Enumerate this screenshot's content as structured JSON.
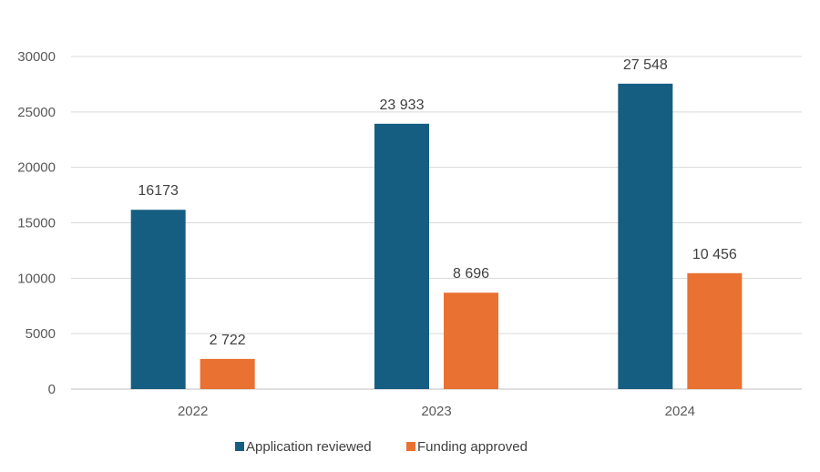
{
  "chart_data": {
    "type": "bar",
    "categories": [
      "2022",
      "2023",
      "2024"
    ],
    "series": [
      {
        "name": "Application reviewed",
        "color": "#155e82",
        "values": [
          16173,
          23933,
          27548
        ],
        "labels": [
          "16173",
          "23 933",
          "27 548"
        ]
      },
      {
        "name": "Funding approved",
        "color": "#e97132",
        "values": [
          2722,
          8696,
          10456
        ],
        "labels": [
          "2 722",
          "8 696",
          "10 456"
        ]
      }
    ],
    "yticks": [
      "0",
      "5000",
      "10000",
      "15000",
      "20000",
      "25000",
      "30000"
    ],
    "ylim": [
      0,
      30000
    ],
    "grid": true,
    "legend_position": "bottom",
    "title": "",
    "xlabel": "",
    "ylabel": ""
  }
}
